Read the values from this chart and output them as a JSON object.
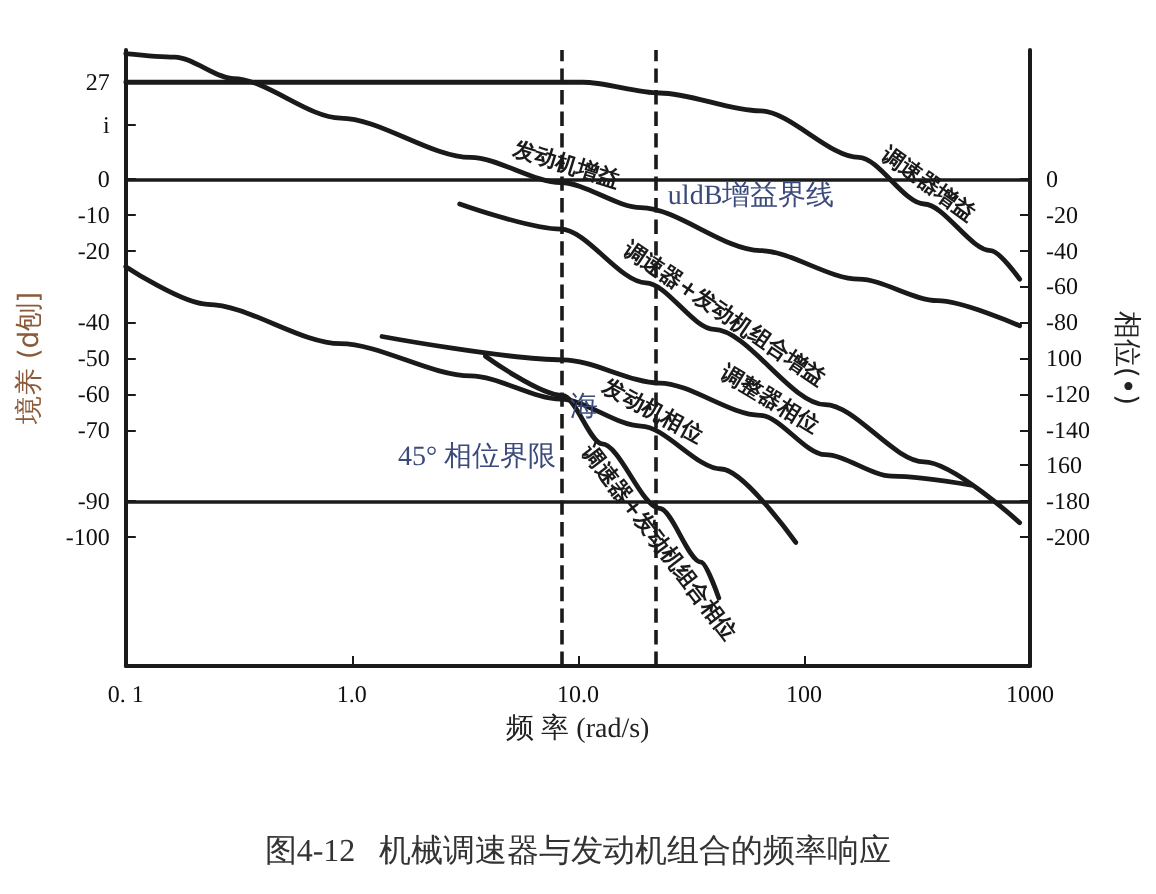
{
  "chart_data": {
    "type": "line",
    "title": "图4-12   机械调速器与发动机组合的频率响应",
    "xlabel": "频 率 (rad/s)",
    "ylabel": "境养 (d刨]",
    "y2label": "相位(•)",
    "log": "x",
    "marker": "none",
    "line_style": "solid",
    "xlim": [
      0.1,
      1000
    ],
    "xticks": [
      {
        "value": 0.1,
        "label": "0. 1"
      },
      {
        "value": 1,
        "label": "1.0"
      },
      {
        "value": 10,
        "label": "10.0"
      },
      100,
      1000
    ],
    "ylim": [
      -136,
      36
    ],
    "yticks": [
      27,
      {
        "value": 15,
        "label": "i"
      },
      0,
      -10,
      -20,
      -40,
      -50,
      -60,
      -70,
      -90,
      -100
    ],
    "y2lim": [
      -272,
      72
    ],
    "y2ticks": [
      0,
      -20,
      -40,
      -60,
      -80,
      {
        "value": -100,
        "label": "100"
      },
      -120,
      -140,
      {
        "value": -160,
        "label": "160"
      },
      -180,
      -200
    ],
    "series": [
      {
        "name": "调速器增益",
        "color": "#1a1a1a",
        "x": [
          0.1,
          10.5,
          23,
          64,
          175,
          340,
          670,
          900
        ],
        "values": [
          27,
          27,
          24,
          19,
          6,
          -7,
          -20,
          -28
        ]
      },
      {
        "name": "发动机增益",
        "color": "#1a1a1a",
        "x": [
          0.1,
          0.165,
          0.3,
          0.89,
          3.35,
          8.4,
          19,
          64,
          175,
          390,
          900
        ],
        "values": [
          35,
          34,
          28,
          17,
          6,
          -1,
          -8,
          -20,
          -28,
          -34,
          -41
        ]
      },
      {
        "name": "调速器+发动机组合增益",
        "color": "#1a1a1a",
        "x": [
          3,
          8.4,
          20,
          40,
          124,
          340,
          900
        ],
        "values": [
          -7,
          -14,
          -29,
          -42,
          -63,
          -79,
          -96
        ]
      },
      {
        "name": "调整器相位",
        "color": "#1a1a1a",
        "axis": "y2",
        "x": [
          1.36,
          8.6,
          23,
          64,
          124,
          245,
          550
        ],
        "values": [
          -88,
          -101,
          -114,
          -132,
          -154,
          -166,
          -171
        ]
      },
      {
        "name": "发动机相位",
        "color": "#1a1a1a",
        "axis": "y2",
        "x": [
          0.1,
          0.23,
          0.89,
          3.35,
          8.4,
          19,
          43,
          92
        ],
        "values": [
          -49,
          -70,
          -92,
          -110,
          -123,
          -138,
          -162,
          -203
        ]
      },
      {
        "name": "调速器+发动机组合相位",
        "color": "#1a1a1a",
        "axis": "y2",
        "x": [
          3.9,
          8.6,
          12.8,
          23,
          35,
          42
        ],
        "values": [
          -99,
          -121,
          -148,
          -184,
          -214,
          -234
        ]
      }
    ],
    "ref_lines": [
      {
        "axis": "y",
        "value": 0,
        "color": "#1a1a1a"
      },
      {
        "axis": "y",
        "value": -90,
        "color": "#1a1a1a"
      },
      {
        "axis": "x",
        "value": 8.4,
        "color": "#1a1a1a",
        "line_style": "dashed"
      },
      {
        "axis": "x",
        "value": 22,
        "color": "#1a1a1a",
        "line_style": "dashed"
      }
    ],
    "annotations": [
      "uldB增益界线",
      "45° 相位界限",
      "海"
    ]
  }
}
